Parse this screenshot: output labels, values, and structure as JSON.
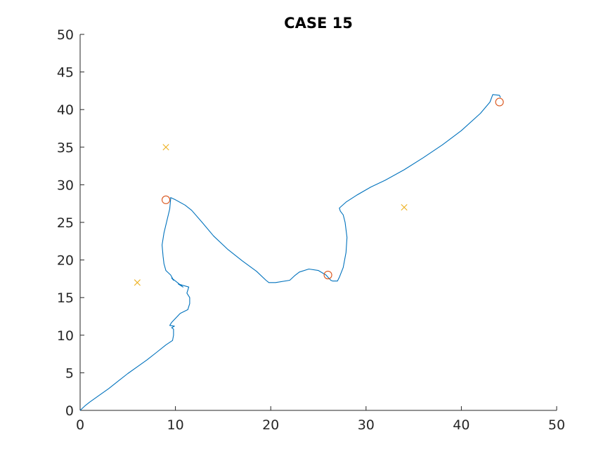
{
  "chart_data": {
    "type": "line",
    "title": "CASE 15",
    "xlabel": "",
    "ylabel": "",
    "xlim": [
      0,
      50
    ],
    "ylim": [
      0,
      50
    ],
    "xticks": [
      "0",
      "10",
      "20",
      "30",
      "40",
      "50"
    ],
    "yticks": [
      "0",
      "5",
      "10",
      "15",
      "20",
      "25",
      "30",
      "35",
      "40",
      "45",
      "50"
    ],
    "grid": false,
    "colors": {
      "path": "#0072BD",
      "circle": "#D95319",
      "cross": "#EDB120",
      "axis": "#262626"
    },
    "series": [
      {
        "style": "line",
        "points": [
          [
            0.0,
            0.0
          ],
          [
            0.5,
            0.6
          ],
          [
            1.0,
            1.1
          ],
          [
            2.0,
            2.0
          ],
          [
            3.0,
            2.9
          ],
          [
            4.0,
            3.9
          ],
          [
            5.0,
            4.9
          ],
          [
            6.0,
            5.8
          ],
          [
            7.0,
            6.7
          ],
          [
            8.0,
            7.7
          ],
          [
            9.0,
            8.7
          ],
          [
            9.7,
            9.3
          ],
          [
            9.8,
            10.0
          ],
          [
            9.8,
            10.8
          ],
          [
            9.6,
            11.0
          ],
          [
            9.9,
            11.2
          ],
          [
            9.4,
            11.3
          ],
          [
            9.6,
            11.7
          ],
          [
            10.5,
            12.9
          ],
          [
            11.3,
            13.4
          ],
          [
            11.5,
            14.2
          ],
          [
            11.5,
            15.0
          ],
          [
            11.2,
            15.6
          ],
          [
            11.4,
            16.4
          ],
          [
            10.3,
            16.8
          ],
          [
            10.8,
            16.4
          ],
          [
            10.3,
            16.9
          ],
          [
            9.6,
            17.6
          ],
          [
            9.8,
            17.3
          ],
          [
            9.5,
            18.0
          ],
          [
            9.0,
            18.6
          ],
          [
            8.8,
            19.5
          ],
          [
            8.7,
            20.5
          ],
          [
            8.6,
            22.0
          ],
          [
            8.8,
            23.6
          ],
          [
            9.1,
            25.2
          ],
          [
            9.4,
            26.8
          ],
          [
            9.5,
            28.1
          ],
          [
            9.5,
            28.3
          ],
          [
            10.0,
            28.0
          ],
          [
            11.0,
            27.3
          ],
          [
            11.7,
            26.6
          ],
          [
            12.8,
            25.0
          ],
          [
            14.0,
            23.2
          ],
          [
            15.5,
            21.4
          ],
          [
            17.0,
            19.9
          ],
          [
            18.5,
            18.5
          ],
          [
            19.5,
            17.3
          ],
          [
            19.8,
            17.0
          ],
          [
            20.5,
            17.0
          ],
          [
            22.0,
            17.3
          ],
          [
            22.5,
            17.9
          ],
          [
            23.0,
            18.4
          ],
          [
            24.0,
            18.8
          ],
          [
            25.0,
            18.6
          ],
          [
            25.8,
            18.0
          ],
          [
            26.3,
            17.3
          ],
          [
            26.5,
            17.2
          ],
          [
            27.0,
            17.2
          ],
          [
            27.2,
            17.7
          ],
          [
            27.6,
            19.0
          ],
          [
            27.9,
            21.0
          ],
          [
            28.0,
            23.0
          ],
          [
            27.8,
            25.0
          ],
          [
            27.6,
            26.0
          ],
          [
            27.3,
            26.5
          ],
          [
            27.2,
            26.9
          ],
          [
            27.9,
            27.7
          ],
          [
            29.0,
            28.6
          ],
          [
            30.5,
            29.7
          ],
          [
            32.0,
            30.6
          ],
          [
            34.0,
            32.0
          ],
          [
            36.0,
            33.6
          ],
          [
            38.0,
            35.3
          ],
          [
            40.0,
            37.2
          ],
          [
            42.0,
            39.5
          ],
          [
            43.0,
            41.0
          ],
          [
            43.3,
            42.0
          ],
          [
            44.0,
            41.9
          ],
          [
            44.1,
            41.6
          ]
        ]
      },
      {
        "style": "circle",
        "points": [
          [
            9.0,
            28.0
          ],
          [
            26.0,
            18.0
          ],
          [
            44.0,
            41.0
          ]
        ]
      },
      {
        "style": "cross",
        "points": [
          [
            9.0,
            35.0
          ],
          [
            6.0,
            17.0
          ],
          [
            34.0,
            27.0
          ]
        ]
      }
    ]
  }
}
